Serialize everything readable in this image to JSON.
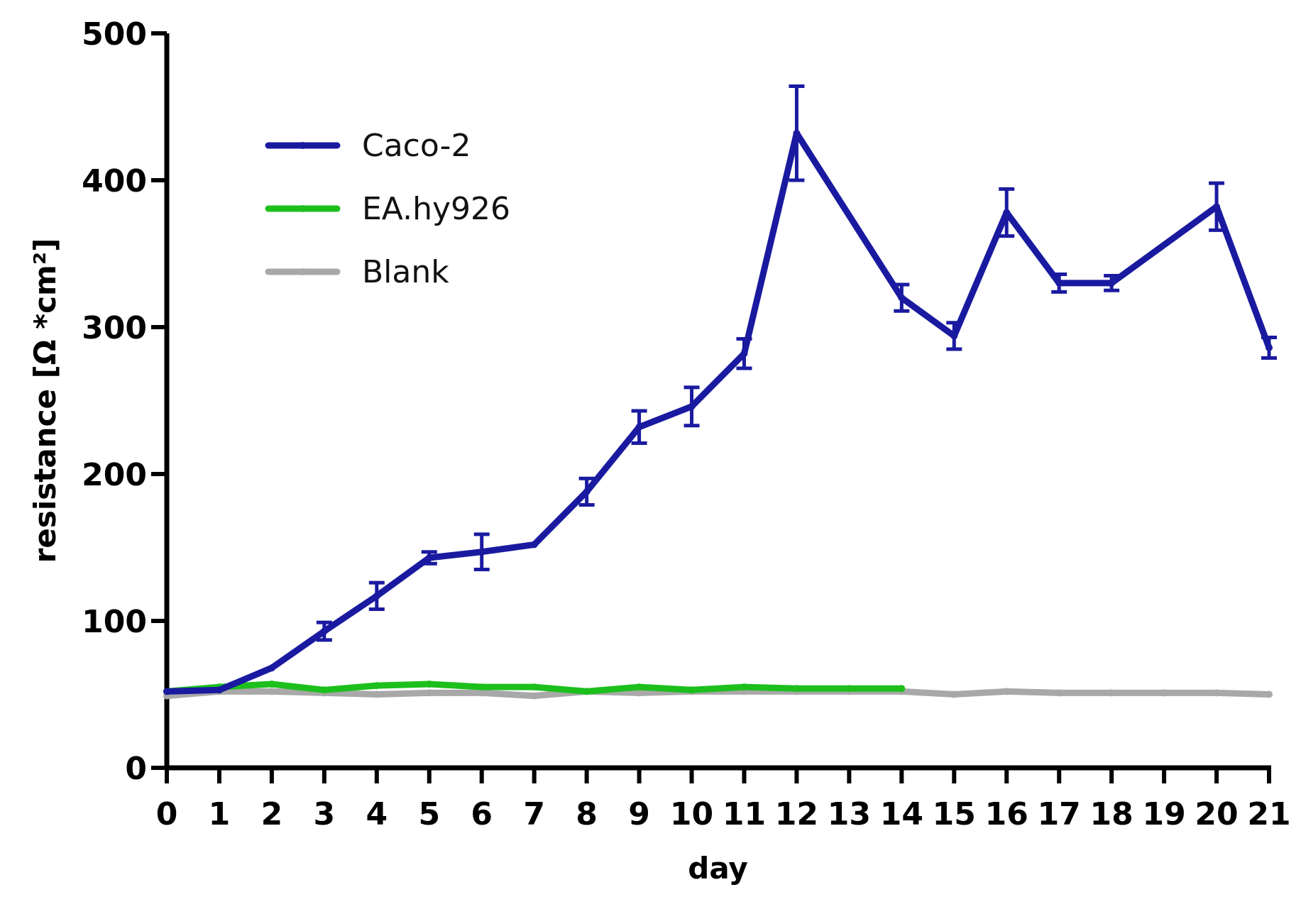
{
  "chart_data": {
    "type": "line",
    "xlabel": "day",
    "ylabel": "resistance [Ω *cm²]",
    "xlim": [
      0,
      21
    ],
    "ylim": [
      0,
      500
    ],
    "x_ticks": [
      0,
      1,
      2,
      3,
      4,
      5,
      6,
      7,
      8,
      9,
      10,
      11,
      12,
      13,
      14,
      15,
      16,
      17,
      18,
      19,
      20,
      21
    ],
    "y_ticks": [
      0,
      100,
      200,
      300,
      400,
      500
    ],
    "grid": false,
    "legend_position": "top-left",
    "series": [
      {
        "name": "Caco-2",
        "color": "#1a1aa0",
        "x": [
          0,
          1,
          2,
          3,
          4,
          5,
          6,
          7,
          8,
          9,
          10,
          11,
          12,
          14,
          15,
          16,
          17,
          18,
          20,
          21
        ],
        "y": [
          52,
          53,
          68,
          93,
          117,
          143,
          147,
          152,
          188,
          232,
          246,
          282,
          432,
          320,
          294,
          378,
          330,
          330,
          382,
          286
        ],
        "error": [
          0,
          0,
          0,
          6,
          9,
          4,
          12,
          0,
          9,
          11,
          13,
          10,
          32,
          9,
          9,
          16,
          6,
          5,
          16,
          7
        ]
      },
      {
        "name": "EA.hy926",
        "color": "#1dbf1d",
        "x": [
          0,
          1,
          2,
          3,
          4,
          5,
          6,
          7,
          8,
          9,
          10,
          11,
          12,
          13,
          14
        ],
        "y": [
          52,
          55,
          57,
          53,
          56,
          57,
          55,
          55,
          52,
          55,
          53,
          55,
          54,
          54,
          54
        ]
      },
      {
        "name": "Blank",
        "color": "#a8a8a8",
        "x": [
          0,
          1,
          2,
          3,
          4,
          5,
          6,
          7,
          8,
          9,
          10,
          11,
          12,
          13,
          14,
          15,
          16,
          17,
          18,
          19,
          20,
          21
        ],
        "y": [
          49,
          52,
          52,
          51,
          50,
          51,
          51,
          49,
          52,
          51,
          52,
          52,
          52,
          52,
          52,
          50,
          52,
          51,
          51,
          51,
          51,
          50
        ]
      }
    ]
  }
}
